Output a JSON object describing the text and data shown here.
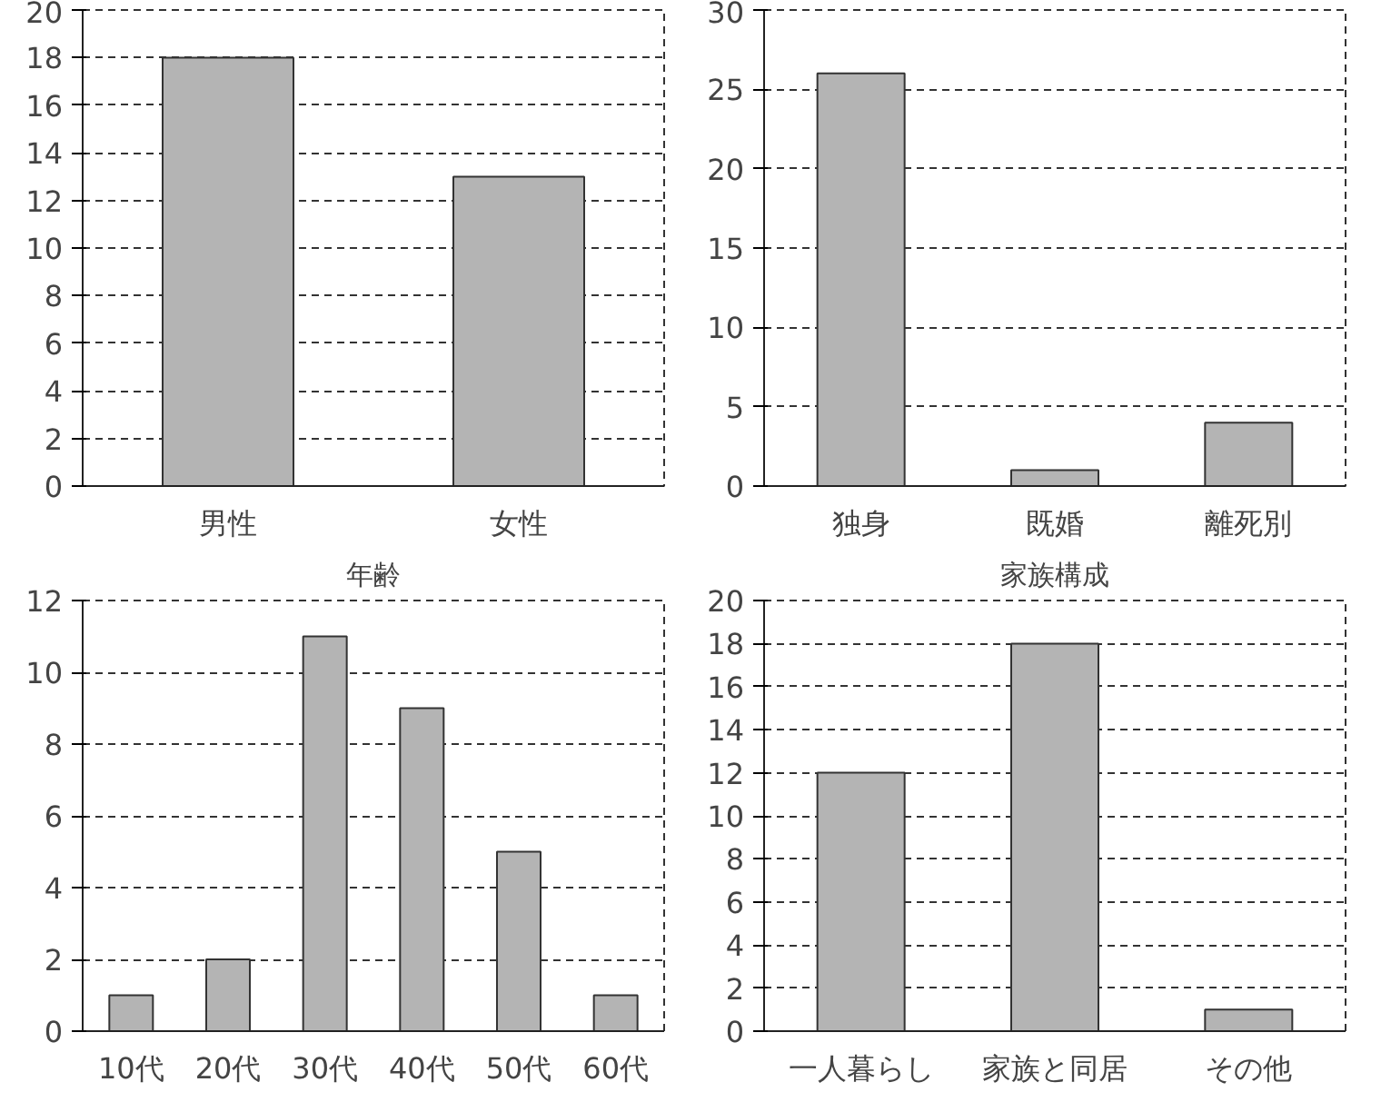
{
  "chart_data": [
    {
      "type": "bar",
      "categories": [
        "男性",
        "女性"
      ],
      "values": [
        18,
        13
      ],
      "color": "#b4b4b4",
      "ylim": [
        0,
        20
      ],
      "yticks": [
        0,
        2,
        4,
        6,
        8,
        10,
        12,
        14,
        16,
        18,
        20
      ],
      "grid": "y"
    },
    {
      "type": "bar",
      "categories": [
        "独身",
        "既婚",
        "離死別"
      ],
      "values": [
        26,
        1,
        4
      ],
      "color": "#b4b4b4",
      "ylim": [
        0,
        30
      ],
      "yticks": [
        0,
        5,
        10,
        15,
        20,
        25,
        30
      ],
      "grid": "y"
    },
    {
      "type": "bar",
      "title": "年齢",
      "categories": [
        "10代",
        "20代",
        "30代",
        "40代",
        "50代",
        "60代"
      ],
      "values": [
        1,
        2,
        11,
        9,
        5,
        1
      ],
      "color": "#b4b4b4",
      "ylim": [
        0,
        12
      ],
      "yticks": [
        0,
        2,
        4,
        6,
        8,
        10,
        12
      ],
      "grid": "y"
    },
    {
      "type": "bar",
      "title": "家族構成",
      "categories": [
        "一人暮らし",
        "家族と同居",
        "その他"
      ],
      "values": [
        12,
        18,
        1
      ],
      "color": "#b4b4b4",
      "ylim": [
        0,
        20
      ],
      "yticks": [
        0,
        2,
        4,
        6,
        8,
        10,
        12,
        14,
        16,
        18,
        20
      ],
      "grid": "y"
    }
  ]
}
